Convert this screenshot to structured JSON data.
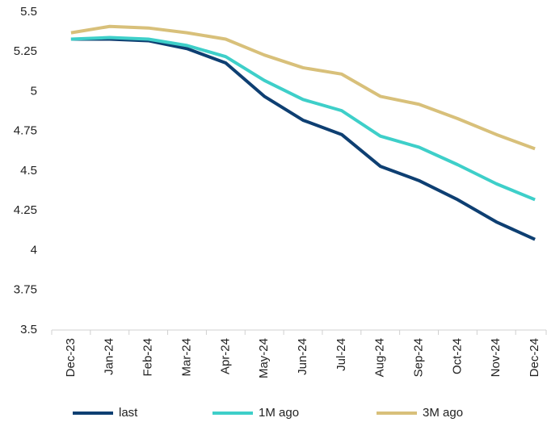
{
  "chart_data": {
    "type": "line",
    "categories": [
      "Dec-23",
      "Jan-24",
      "Feb-24",
      "Mar-24",
      "Apr-24",
      "May-24",
      "Jun-24",
      "Jul-24",
      "Aug-24",
      "Sep-24",
      "Oct-24",
      "Nov-24",
      "Dec-24"
    ],
    "series": [
      {
        "name": "last",
        "color": "#0e3f72",
        "values": [
          5.33,
          5.33,
          5.32,
          5.27,
          5.18,
          4.97,
          4.82,
          4.73,
          4.53,
          4.44,
          4.32,
          4.18,
          4.07
        ]
      },
      {
        "name": "1M ago",
        "color": "#3ecfc9",
        "values": [
          5.33,
          5.34,
          5.33,
          5.29,
          5.22,
          5.07,
          4.95,
          4.88,
          4.72,
          4.65,
          4.54,
          4.42,
          4.32
        ]
      },
      {
        "name": "3M ago",
        "color": "#d8c07a",
        "values": [
          5.37,
          5.41,
          5.4,
          5.37,
          5.33,
          5.23,
          5.15,
          5.11,
          4.97,
          4.92,
          4.83,
          4.73,
          4.64
        ]
      }
    ],
    "ylim": [
      3.5,
      5.5
    ],
    "yticks": [
      3.5,
      3.75,
      4,
      4.25,
      4.5,
      4.75,
      5,
      5.25,
      5.5
    ],
    "grid": false,
    "legend": "bottom"
  }
}
